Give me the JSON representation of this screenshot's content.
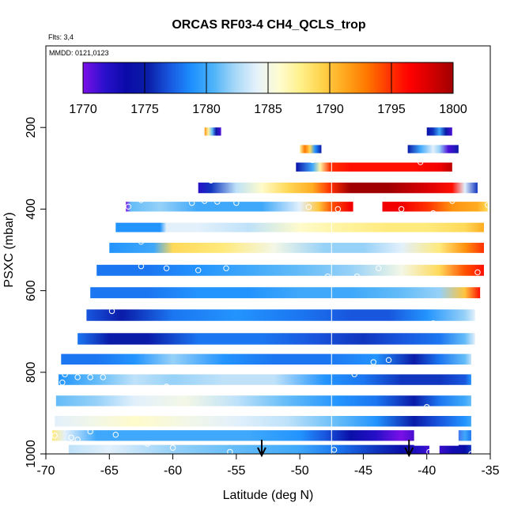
{
  "chart_data": {
    "type": "heatmap",
    "title": "ORCAS RF03-4 CH4_QCLS_trop",
    "flights_note": "Flts: 3,4",
    "date_note": "MMDD: 0121,0123",
    "xlabel": "Latitude (deg N)",
    "ylabel": "PSXC (mbar)",
    "xlim": [
      -70,
      -35
    ],
    "ylim": [
      1000,
      0
    ],
    "x_ticks": [
      -70,
      -65,
      -60,
      -55,
      -50,
      -45,
      -40,
      -35
    ],
    "y_ticks": [
      200,
      400,
      600,
      800,
      1000
    ],
    "colorbar": {
      "min": 1770,
      "max": 1800,
      "ticks": [
        1770,
        1775,
        1780,
        1785,
        1790,
        1795,
        1800
      ],
      "colors": [
        "#7b10e8",
        "#2a10cc",
        "#0a0aa8",
        "#0a1ea8",
        "#1858e0",
        "#1e90ff",
        "#4fb4f8",
        "#a8d8f8",
        "#e6f2fb",
        "#fffcd0",
        "#fff08a",
        "#ffd24a",
        "#ffa81e",
        "#ff7a00",
        "#ff3800",
        "#ff0000",
        "#d40000",
        "#a00000"
      ]
    },
    "reference_line_lat": -47.5,
    "arrows_lat": [
      -53,
      -41.4
    ],
    "bands": [
      {
        "p": 210,
        "h": 20,
        "start": -57.5,
        "end": -56.2,
        "stops": [
          [
            -57.5,
            1792
          ],
          [
            -57.2,
            1787
          ],
          [
            -56.9,
            1781
          ],
          [
            -56.6,
            1775
          ],
          [
            -56.2,
            1771
          ]
        ]
      },
      {
        "p": 210,
        "h": 20,
        "start": -40.0,
        "end": -38.0,
        "stops": [
          [
            -40.0,
            1774
          ],
          [
            -39.5,
            1776
          ],
          [
            -39.0,
            1780
          ],
          [
            -38.5,
            1775
          ],
          [
            -38.0,
            1771
          ]
        ]
      },
      {
        "p": 253,
        "h": 20,
        "start": -50.0,
        "end": -48.3,
        "stops": [
          [
            -50.0,
            1787
          ],
          [
            -49.6,
            1793
          ],
          [
            -49.2,
            1789
          ],
          [
            -48.8,
            1779
          ],
          [
            -48.3,
            1775
          ]
        ]
      },
      {
        "p": 253,
        "h": 20,
        "start": -41.5,
        "end": -37.5,
        "stops": [
          [
            -41.5,
            1775
          ],
          [
            -40.5,
            1780
          ],
          [
            -39.5,
            1784
          ],
          [
            -39.0,
            1782
          ],
          [
            -38.3,
            1771
          ],
          [
            -37.5,
            1775
          ]
        ]
      },
      {
        "p": 297,
        "h": 22,
        "start": -50.3,
        "end": -38.0,
        "stops": [
          [
            -50.3,
            1774
          ],
          [
            -49.0,
            1780
          ],
          [
            -48.4,
            1787
          ],
          [
            -47.6,
            1795
          ],
          [
            -46.0,
            1796
          ],
          [
            -44.0,
            1796
          ],
          [
            -41.0,
            1796
          ],
          [
            -39.0,
            1797
          ],
          [
            -38.0,
            1799
          ]
        ]
      },
      {
        "p": 348,
        "h": 26,
        "start": -58.0,
        "end": -36.0,
        "stops": [
          [
            -58.0,
            1772
          ],
          [
            -57.0,
            1776
          ],
          [
            -55.0,
            1783
          ],
          [
            -53.0,
            1786
          ],
          [
            -51.0,
            1789
          ],
          [
            -49.0,
            1791
          ],
          [
            -47.6,
            1795
          ],
          [
            -46.0,
            1800
          ],
          [
            -43.0,
            1800
          ],
          [
            -40.0,
            1798
          ],
          [
            -38.0,
            1796
          ],
          [
            -37.0,
            1784
          ],
          [
            -36.0,
            1776
          ]
        ]
      },
      {
        "p": 394,
        "h": 24,
        "start": -63.7,
        "end": -35.2,
        "stops": [
          [
            -63.7,
            1770
          ],
          [
            -63.3,
            1781
          ],
          [
            -61.0,
            1782
          ],
          [
            -58.0,
            1780
          ],
          [
            -56.0,
            1780
          ],
          [
            -53.0,
            1780
          ],
          [
            -50.0,
            1784
          ],
          [
            -48.5,
            1790
          ],
          [
            -47.5,
            1794
          ],
          [
            -46.0,
            1797
          ],
          [
            -44.0,
            1797
          ],
          [
            -42.0,
            1797
          ],
          [
            -40.0,
            1795
          ],
          [
            -38.0,
            1792
          ],
          [
            -36.0,
            1791
          ],
          [
            -35.2,
            1789
          ]
        ]
      },
      {
        "p": 445,
        "h": 23,
        "start": -64.5,
        "end": -35.5,
        "stops": [
          [
            -64.5,
            1779
          ],
          [
            -61.0,
            1779
          ],
          [
            -60.5,
            1784
          ],
          [
            -58.0,
            1784
          ],
          [
            -54.0,
            1783
          ],
          [
            -50.0,
            1786
          ],
          [
            -47.0,
            1787
          ],
          [
            -43.0,
            1788
          ],
          [
            -40.0,
            1788
          ],
          [
            -37.0,
            1789
          ],
          [
            -35.5,
            1791
          ]
        ]
      },
      {
        "p": 495,
        "h": 25,
        "start": -65.0,
        "end": -35.5,
        "stops": [
          [
            -65.0,
            1779
          ],
          [
            -61.5,
            1780
          ],
          [
            -60.0,
            1789
          ],
          [
            -56.0,
            1788
          ],
          [
            -52.0,
            1785
          ],
          [
            -48.0,
            1782
          ],
          [
            -45.0,
            1782
          ],
          [
            -42.0,
            1784
          ],
          [
            -39.0,
            1788
          ],
          [
            -37.0,
            1792
          ],
          [
            -35.5,
            1795
          ]
        ]
      },
      {
        "p": 550,
        "h": 27,
        "start": -66.0,
        "end": -35.5,
        "stops": [
          [
            -66.0,
            1778
          ],
          [
            -62.0,
            1778
          ],
          [
            -58.0,
            1779
          ],
          [
            -54.0,
            1780
          ],
          [
            -50.0,
            1781
          ],
          [
            -46.0,
            1782
          ],
          [
            -42.0,
            1785
          ],
          [
            -39.0,
            1789
          ],
          [
            -37.0,
            1794
          ],
          [
            -35.5,
            1796
          ]
        ]
      },
      {
        "p": 605,
        "h": 27,
        "start": -66.5,
        "end": -35.8,
        "stops": [
          [
            -66.5,
            1778
          ],
          [
            -62.0,
            1778
          ],
          [
            -58.0,
            1779
          ],
          [
            -54.0,
            1779
          ],
          [
            -50.0,
            1780
          ],
          [
            -46.0,
            1780
          ],
          [
            -42.0,
            1781
          ],
          [
            -39.0,
            1782
          ],
          [
            -37.0,
            1790
          ],
          [
            -35.8,
            1796
          ]
        ]
      },
      {
        "p": 660,
        "h": 28,
        "start": -66.8,
        "end": -36.2,
        "stops": [
          [
            -66.8,
            1777
          ],
          [
            -64.0,
            1775
          ],
          [
            -60.0,
            1778
          ],
          [
            -55.0,
            1779
          ],
          [
            -50.0,
            1778
          ],
          [
            -46.0,
            1777
          ],
          [
            -43.0,
            1777
          ],
          [
            -40.0,
            1779
          ],
          [
            -37.0,
            1782
          ],
          [
            -36.2,
            1784
          ]
        ]
      },
      {
        "p": 718,
        "h": 28,
        "start": -67.5,
        "end": -36.2,
        "stops": [
          [
            -67.5,
            1778
          ],
          [
            -65.0,
            1775
          ],
          [
            -62.0,
            1775
          ],
          [
            -58.0,
            1778
          ],
          [
            -53.0,
            1778
          ],
          [
            -49.0,
            1777
          ],
          [
            -45.0,
            1776
          ],
          [
            -42.0,
            1777
          ],
          [
            -39.0,
            1778
          ],
          [
            -37.0,
            1781
          ],
          [
            -36.2,
            1784
          ]
        ]
      },
      {
        "p": 768,
        "h": 26,
        "start": -68.8,
        "end": -36.5,
        "stops": [
          [
            -68.8,
            1778
          ],
          [
            -66.0,
            1778
          ],
          [
            -63.0,
            1779
          ],
          [
            -60.0,
            1782
          ],
          [
            -56.0,
            1779
          ],
          [
            -52.0,
            1778
          ],
          [
            -48.0,
            1778
          ],
          [
            -44.0,
            1779
          ],
          [
            -41.0,
            1775
          ],
          [
            -39.0,
            1778
          ],
          [
            -37.0,
            1781
          ],
          [
            -36.5,
            1783
          ]
        ]
      },
      {
        "p": 818,
        "h": 26,
        "start": -69.0,
        "end": -36.5,
        "stops": [
          [
            -69.0,
            1779
          ],
          [
            -66.0,
            1781
          ],
          [
            -63.0,
            1783
          ],
          [
            -60.0,
            1782
          ],
          [
            -56.0,
            1783
          ],
          [
            -52.0,
            1783
          ],
          [
            -48.0,
            1779
          ],
          [
            -45.0,
            1778
          ],
          [
            -42.0,
            1776
          ],
          [
            -39.0,
            1776
          ],
          [
            -37.0,
            1777
          ],
          [
            -36.5,
            1779
          ]
        ]
      },
      {
        "p": 870,
        "h": 26,
        "start": -69.2,
        "end": -36.5,
        "stops": [
          [
            -69.2,
            1781
          ],
          [
            -66.0,
            1782
          ],
          [
            -63.0,
            1784
          ],
          [
            -59.0,
            1785
          ],
          [
            -55.0,
            1783
          ],
          [
            -51.0,
            1781
          ],
          [
            -47.0,
            1779
          ],
          [
            -44.0,
            1778
          ],
          [
            -41.0,
            1775
          ],
          [
            -39.0,
            1778
          ],
          [
            -37.0,
            1780
          ],
          [
            -36.5,
            1781
          ]
        ]
      },
      {
        "p": 920,
        "h": 26,
        "start": -69.3,
        "end": -36.5,
        "stops": [
          [
            -69.3,
            1784
          ],
          [
            -66.0,
            1785
          ],
          [
            -63.0,
            1786
          ],
          [
            -59.0,
            1785
          ],
          [
            -55.0,
            1784
          ],
          [
            -51.0,
            1783
          ],
          [
            -47.0,
            1781
          ],
          [
            -44.0,
            1779
          ],
          [
            -41.0,
            1775
          ],
          [
            -39.0,
            1777
          ],
          [
            -37.0,
            1779
          ],
          [
            -36.5,
            1780
          ]
        ]
      },
      {
        "p": 955,
        "h": 26,
        "start": -69.5,
        "end": -36.5,
        "stops": [
          [
            -69.5,
            1788
          ],
          [
            -68.5,
            1784
          ],
          [
            -66.0,
            1780
          ],
          [
            -62.0,
            1780
          ],
          [
            -58.0,
            1780
          ],
          [
            -54.0,
            1780
          ],
          [
            -50.0,
            1779
          ],
          [
            -48.0,
            1777
          ],
          [
            -46.0,
            1774
          ],
          [
            -44.0,
            1772
          ],
          [
            -42.0,
            1770
          ],
          [
            -40.0,
            1773
          ],
          [
            -38.5,
            1771
          ],
          [
            -37.0,
            1780
          ],
          [
            -36.5,
            1778
          ]
        ]
      },
      {
        "p": 992,
        "h": 28,
        "start": -68.2,
        "end": -36.5,
        "stops": [
          [
            -68.2,
            1783
          ],
          [
            -65.0,
            1784
          ],
          [
            -60.0,
            1782
          ],
          [
            -55.0,
            1781
          ],
          [
            -50.0,
            1780
          ],
          [
            -47.0,
            1778
          ],
          [
            -44.0,
            1776
          ],
          [
            -42.0,
            1774
          ],
          [
            -40.5,
            1772
          ],
          [
            -39.5,
            1771
          ],
          [
            -38.0,
            1773
          ],
          [
            -37.0,
            1774
          ],
          [
            -36.5,
            1776
          ]
        ]
      }
    ],
    "gaps": [
      {
        "lat_start": -45.8,
        "lat_end": -43.5,
        "p_top": 375,
        "p_bottom": 415
      },
      {
        "lat_start": -41.0,
        "lat_end": -37.5,
        "p_top": 935,
        "p_bottom": 980
      },
      {
        "lat_start": -39.8,
        "lat_end": -39.0,
        "p_top": 975,
        "p_bottom": 1010
      }
    ],
    "points": [
      [
        -57.0,
        330
      ],
      [
        -62.5,
        378
      ],
      [
        -58.5,
        385
      ],
      [
        -57.5,
        380
      ],
      [
        -56.5,
        382
      ],
      [
        -55.0,
        385
      ],
      [
        -64.2,
        370
      ],
      [
        -63.5,
        394
      ],
      [
        -61.2,
        415
      ],
      [
        -49.0,
        280
      ],
      [
        -40.5,
        285
      ],
      [
        -49.3,
        395
      ],
      [
        -47.0,
        400
      ],
      [
        -39.5,
        410
      ],
      [
        -38.0,
        380
      ],
      [
        -35.2,
        390
      ],
      [
        -64.0,
        468
      ],
      [
        -62.5,
        480
      ],
      [
        -60.0,
        470
      ],
      [
        -59.5,
        465
      ],
      [
        -45.8,
        415
      ],
      [
        -42.0,
        400
      ],
      [
        -62.5,
        540
      ],
      [
        -60.5,
        545
      ],
      [
        -58.0,
        550
      ],
      [
        -55.7,
        580
      ],
      [
        -55.8,
        545
      ],
      [
        -47.8,
        565
      ],
      [
        -45.5,
        565
      ],
      [
        -43.8,
        545
      ],
      [
        -36.0,
        555
      ],
      [
        -64.8,
        650
      ],
      [
        -39.5,
        680
      ],
      [
        -60.0,
        745
      ],
      [
        -55.6,
        748
      ],
      [
        -44.2,
        775
      ],
      [
        -43.0,
        770
      ],
      [
        -45.7,
        805
      ],
      [
        -69.0,
        735
      ],
      [
        -68.5,
        805
      ],
      [
        -68.7,
        825
      ],
      [
        -67.5,
        812
      ],
      [
        -66.5,
        812
      ],
      [
        -65.5,
        812
      ],
      [
        -60.5,
        835
      ],
      [
        -62.5,
        895
      ],
      [
        -40.0,
        885
      ],
      [
        -69.3,
        955
      ],
      [
        -68.0,
        960
      ],
      [
        -67.5,
        965
      ],
      [
        -66.5,
        945
      ],
      [
        -64.5,
        953
      ],
      [
        -62.0,
        975
      ],
      [
        -60.0,
        985
      ],
      [
        -55.5,
        995
      ],
      [
        -47.3,
        990
      ],
      [
        -39.8,
        995
      ],
      [
        -36.5,
        1000
      ]
    ]
  }
}
